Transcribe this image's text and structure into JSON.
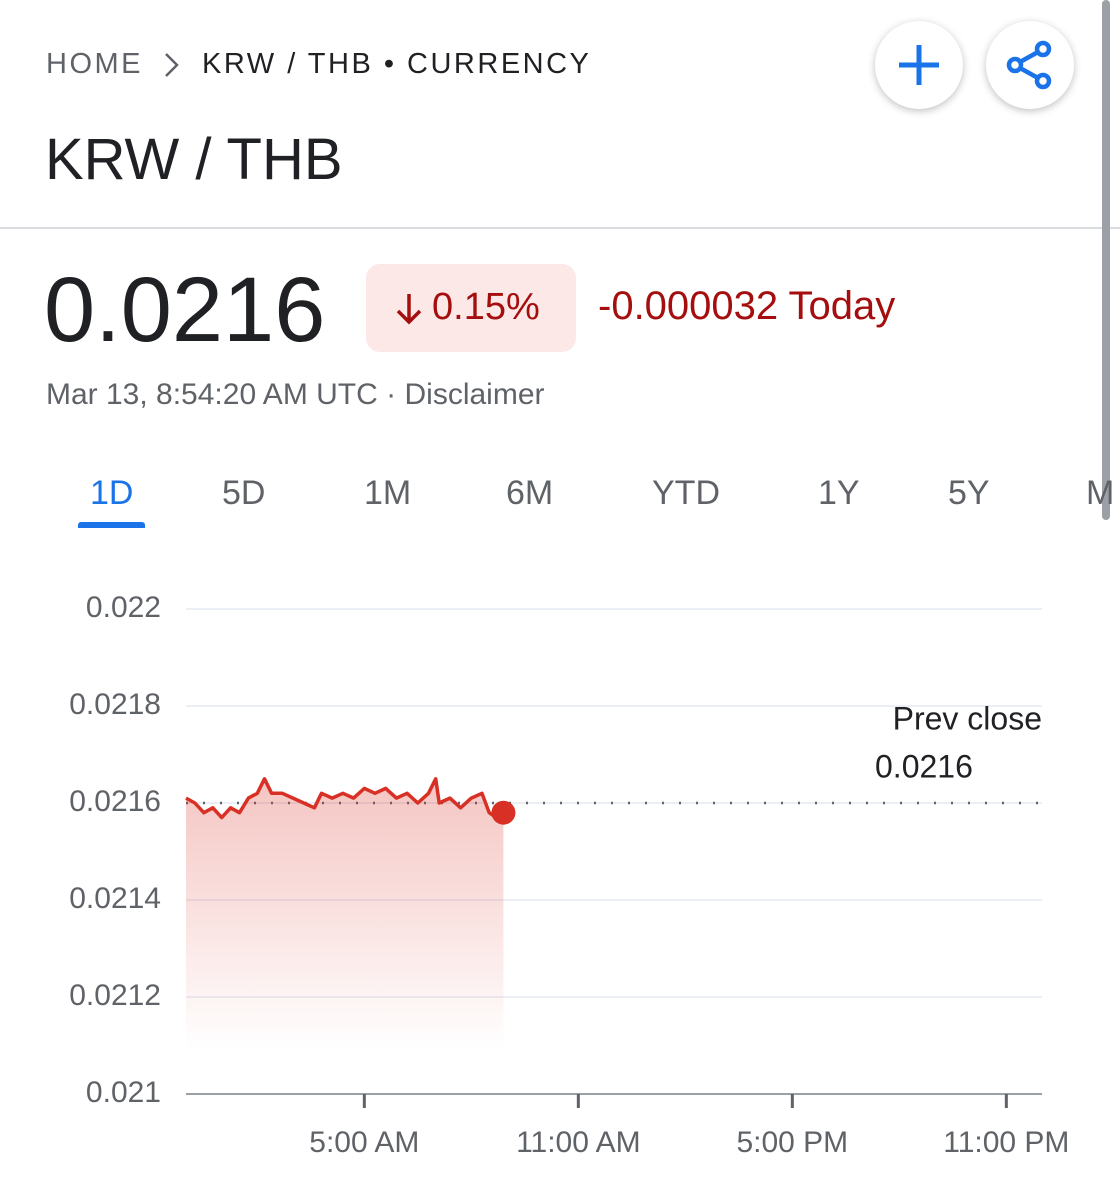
{
  "breadcrumb": {
    "home": "HOME",
    "current": "KRW / THB • CURRENCY"
  },
  "title": "KRW / THB",
  "price": "0.0216",
  "change_percent": "0.15%",
  "change_today": "-0.000032 Today",
  "timestamp": "Mar 13, 8:54:20 AM UTC",
  "separator": "·",
  "disclaimer": "Disclaimer",
  "tabs": [
    "1D",
    "5D",
    "1M",
    "6M",
    "YTD",
    "1Y",
    "5Y",
    "M"
  ],
  "chart_data": {
    "type": "line",
    "x": [
      0,
      0.25,
      0.5,
      0.75,
      1.0,
      1.25,
      1.5,
      1.75,
      2.0,
      2.2,
      2.4,
      2.7,
      3.0,
      3.3,
      3.6,
      3.8,
      4.1,
      4.4,
      4.7,
      5.0,
      5.3,
      5.6,
      5.9,
      6.2,
      6.5,
      6.8,
      7.0,
      7.1,
      7.4,
      7.7,
      8.0,
      8.3,
      8.5,
      8.7,
      8.9
    ],
    "series": [
      {
        "color": "#d93025",
        "values": [
          0.02161,
          0.0216,
          0.02158,
          0.02159,
          0.02157,
          0.02159,
          0.02158,
          0.02161,
          0.02162,
          0.02165,
          0.02162,
          0.02162,
          0.02161,
          0.0216,
          0.02159,
          0.02162,
          0.02161,
          0.02162,
          0.02161,
          0.02163,
          0.02162,
          0.02163,
          0.02161,
          0.02162,
          0.0216,
          0.02162,
          0.02165,
          0.0216,
          0.02161,
          0.02159,
          0.02161,
          0.02162,
          0.02158,
          0.02157,
          0.02158
        ]
      }
    ],
    "xlim": [
      0,
      24
    ],
    "xticks": [
      {
        "value": 5,
        "label": "5:00 AM"
      },
      {
        "value": 11,
        "label": "11:00 AM"
      },
      {
        "value": 17,
        "label": "5:00 PM"
      },
      {
        "value": 23,
        "label": "11:00 PM"
      }
    ],
    "ylim": [
      0.021,
      0.022
    ],
    "yticks": [
      0.021,
      0.0212,
      0.0214,
      0.0216,
      0.0218,
      0.022
    ],
    "grid": true,
    "prev_close": {
      "label": "Prev close",
      "value": 0.0216
    }
  }
}
